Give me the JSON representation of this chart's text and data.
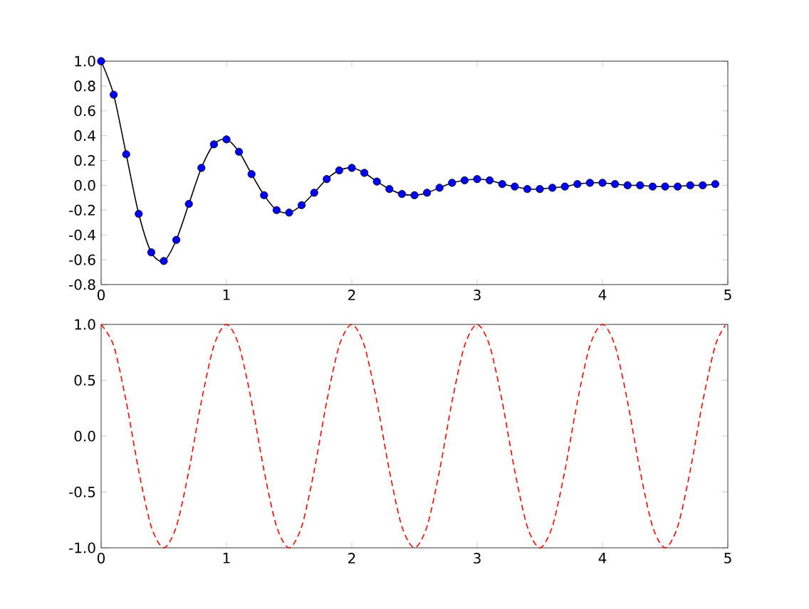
{
  "chart_data": [
    {
      "type": "line",
      "xlim": [
        0,
        5
      ],
      "ylim": [
        -0.8,
        1.0
      ],
      "xticks": [
        0,
        1,
        2,
        3,
        4,
        5
      ],
      "yticks": [
        {
          "value": -0.8,
          "label": "-0.8"
        },
        {
          "value": -0.6,
          "label": "-0.6"
        },
        {
          "value": -0.4,
          "label": "-0.4"
        },
        {
          "value": -0.2,
          "label": "-0.2"
        },
        {
          "value": 0,
          "label": "0.0"
        },
        {
          "value": 0.2,
          "label": "0.2"
        },
        {
          "value": 0.4,
          "label": "0.4"
        },
        {
          "value": 0.6,
          "label": "0.6"
        },
        {
          "value": 0.8,
          "label": "0.8"
        },
        {
          "value": 1.0,
          "label": "1.0"
        }
      ],
      "x": [
        0,
        0.1,
        0.2,
        0.3,
        0.4,
        0.5,
        0.6,
        0.7,
        0.8,
        0.9,
        1.0,
        1.1,
        1.2,
        1.3,
        1.4,
        1.5,
        1.6,
        1.7,
        1.8,
        1.9,
        2.0,
        2.1,
        2.2,
        2.3,
        2.4,
        2.5,
        2.6,
        2.7,
        2.8,
        2.9,
        3.0,
        3.1,
        3.2,
        3.3,
        3.4,
        3.5,
        3.6,
        3.7,
        3.8,
        3.9,
        4.0,
        4.1,
        4.2,
        4.3,
        4.4,
        4.5,
        4.6,
        4.7,
        4.8,
        4.9
      ],
      "series": [
        {
          "type": "line",
          "color": "#000000",
          "line_style": "solid",
          "values": [
            1.0,
            0.73,
            0.25,
            -0.23,
            -0.54,
            -0.61,
            -0.44,
            -0.15,
            0.14,
            0.33,
            0.37,
            0.27,
            0.09,
            -0.08,
            -0.2,
            -0.22,
            -0.16,
            -0.06,
            0.05,
            0.12,
            0.14,
            0.1,
            0.03,
            -0.03,
            -0.07,
            -0.08,
            -0.06,
            -0.02,
            0.02,
            0.04,
            0.05,
            0.04,
            0.01,
            -0.01,
            -0.03,
            -0.03,
            -0.02,
            -0.01,
            0.01,
            0.02,
            0.02,
            0.01,
            0.0,
            0.0,
            -0.01,
            -0.01,
            -0.01,
            0.0,
            0.0,
            0.01
          ]
        },
        {
          "type": "scatter",
          "color": "#0000ff",
          "marker": "circle",
          "values": [
            1.0,
            0.73,
            0.25,
            -0.23,
            -0.54,
            -0.61,
            -0.44,
            -0.15,
            0.14,
            0.33,
            0.37,
            0.27,
            0.09,
            -0.08,
            -0.2,
            -0.22,
            -0.16,
            -0.06,
            0.05,
            0.12,
            0.14,
            0.1,
            0.03,
            -0.03,
            -0.07,
            -0.08,
            -0.06,
            -0.02,
            0.02,
            0.04,
            0.05,
            0.04,
            0.01,
            -0.01,
            -0.03,
            -0.03,
            -0.02,
            -0.01,
            0.01,
            0.02,
            0.02,
            0.01,
            0.0,
            0.0,
            -0.01,
            -0.01,
            -0.01,
            0.0,
            0.0,
            0.01
          ]
        }
      ]
    },
    {
      "type": "line",
      "xlim": [
        0,
        5
      ],
      "ylim": [
        -1.0,
        1.0
      ],
      "color": "#ff0000",
      "line_style": "dashed",
      "xticks": [
        0,
        1,
        2,
        3,
        4,
        5
      ],
      "yticks": [
        {
          "value": -1.0,
          "label": "-1.0"
        },
        {
          "value": -0.5,
          "label": "-0.5"
        },
        {
          "value": 0,
          "label": "0.0"
        },
        {
          "value": 0.5,
          "label": "0.5"
        },
        {
          "value": 1.0,
          "label": "1.0"
        }
      ],
      "x": [
        0,
        0.1,
        0.2,
        0.3,
        0.4,
        0.5,
        0.6,
        0.7,
        0.8,
        0.9,
        1.0,
        1.1,
        1.2,
        1.3,
        1.4,
        1.5,
        1.6,
        1.7,
        1.8,
        1.9,
        2.0,
        2.1,
        2.2,
        2.3,
        2.4,
        2.5,
        2.6,
        2.7,
        2.8,
        2.9,
        3.0,
        3.1,
        3.2,
        3.3,
        3.4,
        3.5,
        3.6,
        3.7,
        3.8,
        3.9,
        4.0,
        4.1,
        4.2,
        4.3,
        4.4,
        4.5,
        4.6,
        4.7,
        4.8,
        4.9,
        4.98
      ],
      "values": [
        1.0,
        0.81,
        0.31,
        -0.31,
        -0.81,
        -1.0,
        -0.81,
        -0.31,
        0.31,
        0.81,
        1.0,
        0.81,
        0.31,
        -0.31,
        -0.81,
        -1.0,
        -0.81,
        -0.31,
        0.31,
        0.81,
        1.0,
        0.81,
        0.31,
        -0.31,
        -0.81,
        -1.0,
        -0.81,
        -0.31,
        0.31,
        0.81,
        1.0,
        0.81,
        0.31,
        -0.31,
        -0.81,
        -1.0,
        -0.81,
        -0.31,
        0.31,
        0.81,
        1.0,
        0.81,
        0.31,
        -0.31,
        -0.81,
        -1.0,
        -0.81,
        -0.31,
        0.31,
        0.81,
        0.99
      ]
    }
  ]
}
